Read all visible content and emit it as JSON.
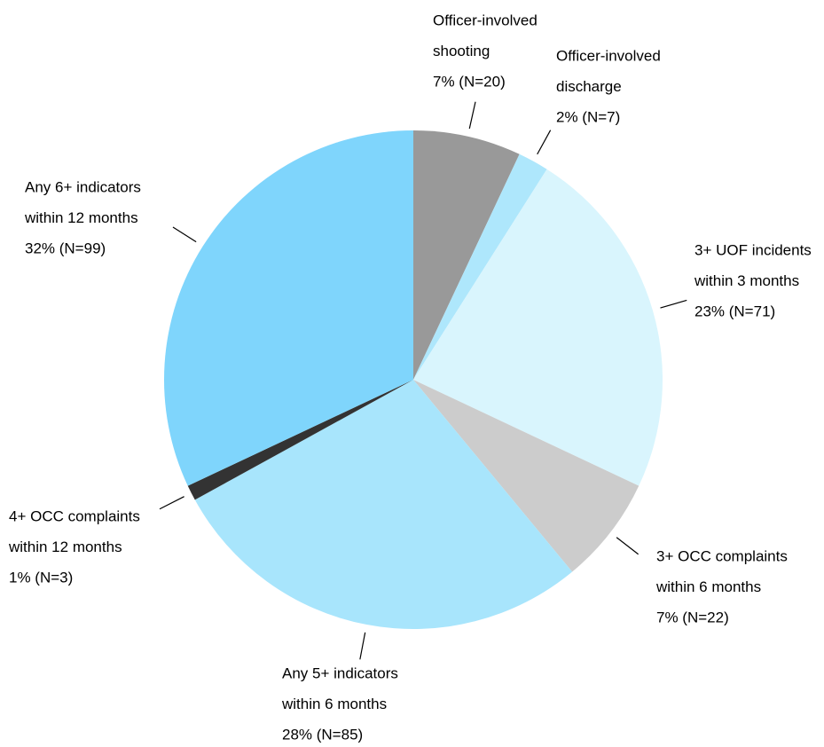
{
  "chart_data": {
    "type": "pie",
    "categories": [
      [
        "Officer-involved",
        "shooting"
      ],
      [
        "Officer-involved",
        "discharge"
      ],
      [
        "3+ UOF incidents",
        "within 3 months"
      ],
      [
        "3+ OCC complaints",
        "within 6 months"
      ],
      [
        "Any 5+ indicators",
        "within 6 months"
      ],
      [
        "4+ OCC complaints",
        "within 12 months"
      ],
      [
        "Any 6+ indicators",
        "within 12 months"
      ]
    ],
    "values": [
      7,
      2,
      23,
      7,
      28,
      1,
      32
    ],
    "value_labels": [
      "7% (N=20)",
      "2% (N=7)",
      "23% (N=71)",
      "7% (N=22)",
      "28% (N=85)",
      "1% (N=3)",
      "32% (N=99)"
    ],
    "colors": [
      "#999999",
      "#aee7fc",
      "#d9f5fd",
      "#cccccc",
      "#a8e5fc",
      "#333333",
      "#7fd5fc"
    ]
  }
}
